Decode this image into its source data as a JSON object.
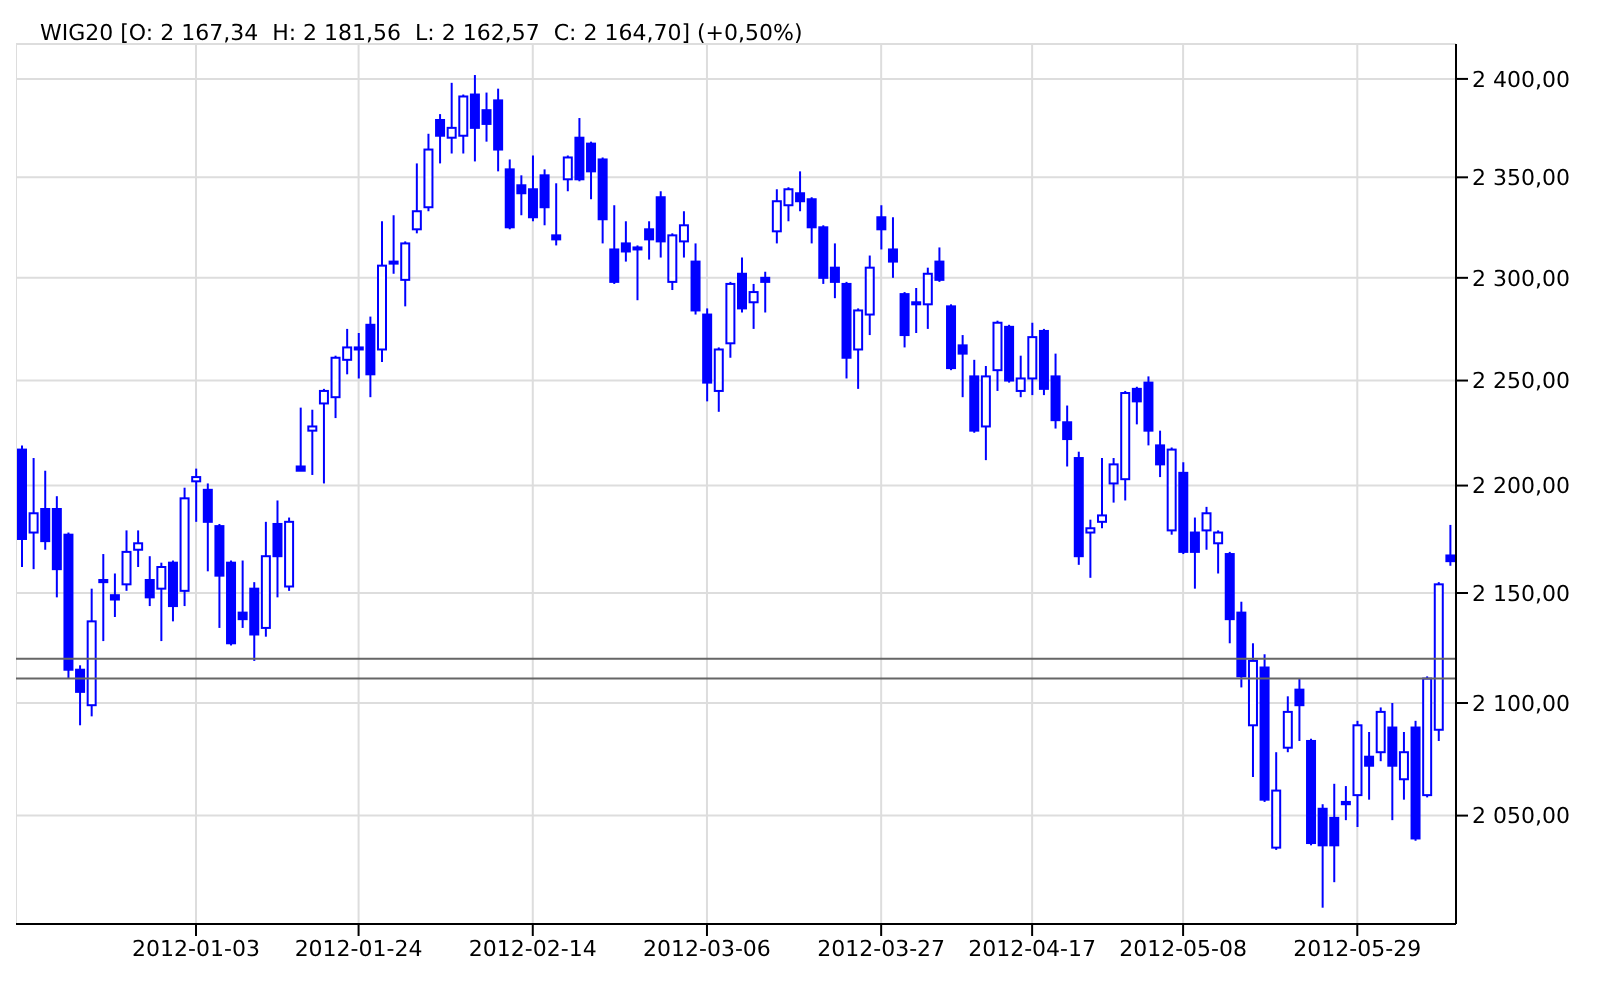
{
  "chart_data": {
    "type": "candlestick",
    "title": "WIG20 [O: 2 167,34  H: 2 181,56  L: 2 162,57  C: 2 164,70] (+0,50%)",
    "categories": [
      null,
      null,
      null,
      null,
      null,
      null,
      null,
      null,
      null,
      null,
      null,
      null,
      null,
      null,
      null,
      "2012-01-03",
      null,
      null,
      null,
      null,
      null,
      null,
      null,
      null,
      null,
      null,
      null,
      null,
      null,
      "2012-01-24",
      null,
      null,
      null,
      null,
      null,
      null,
      null,
      null,
      null,
      null,
      null,
      null,
      null,
      null,
      "2012-02-14",
      null,
      null,
      null,
      null,
      null,
      null,
      null,
      null,
      null,
      null,
      null,
      null,
      null,
      null,
      "2012-03-06",
      null,
      null,
      null,
      null,
      null,
      null,
      null,
      null,
      null,
      null,
      null,
      null,
      null,
      null,
      "2012-03-27",
      null,
      null,
      null,
      null,
      null,
      null,
      null,
      null,
      null,
      null,
      null,
      null,
      "2012-04-17",
      null,
      null,
      null,
      null,
      null,
      null,
      null,
      null,
      null,
      null,
      null,
      null,
      "2012-05-08",
      null,
      null,
      null,
      null,
      null,
      null,
      null,
      null,
      null,
      null,
      null,
      null,
      null,
      null,
      "2012-05-29",
      null,
      null,
      null,
      null,
      null,
      null,
      null,
      null
    ],
    "ohlc": [
      [
        2217,
        2219,
        2162,
        2175
      ],
      [
        2178,
        2213,
        2161,
        2187
      ],
      [
        2189,
        2207,
        2170,
        2174
      ],
      [
        2189,
        2195,
        2148,
        2161
      ],
      [
        2177,
        2178,
        2111,
        2115
      ],
      [
        2115,
        2117,
        2090,
        2105
      ],
      [
        2099,
        2152,
        2094,
        2137
      ],
      [
        2156,
        2168,
        2128,
        2155
      ],
      [
        2149,
        2159,
        2139,
        2147
      ],
      [
        2154,
        2179,
        2151,
        2169
      ],
      [
        2170,
        2179,
        2162,
        2173
      ],
      [
        2156,
        2167,
        2144,
        2148
      ],
      [
        2152,
        2164,
        2128,
        2162
      ],
      [
        2164,
        2165,
        2137,
        2144
      ],
      [
        2151,
        2199,
        2144,
        2194
      ],
      [
        2202,
        2208,
        2183,
        2204
      ],
      [
        2198,
        2201,
        2160,
        2183
      ],
      [
        2181,
        2182,
        2134,
        2158
      ],
      [
        2164,
        2165,
        2126,
        2127
      ],
      [
        2141,
        2165,
        2134,
        2138
      ],
      [
        2152,
        2155,
        2119,
        2131
      ],
      [
        2134,
        2183,
        2130,
        2167
      ],
      [
        2182,
        2193,
        2148,
        2167
      ],
      [
        2153,
        2185,
        2151,
        2183
      ],
      [
        2209,
        2237,
        2207,
        2207
      ],
      [
        2226,
        2236,
        2205,
        2228
      ],
      [
        2239,
        2246,
        2201,
        2245
      ],
      [
        2242,
        2262,
        2232,
        2261
      ],
      [
        2260,
        2275,
        2253,
        2266
      ],
      [
        2266,
        2273,
        2251,
        2265
      ],
      [
        2277,
        2281,
        2242,
        2253
      ],
      [
        2265,
        2328,
        2259,
        2306
      ],
      [
        2308,
        2331,
        2302,
        2307
      ],
      [
        2299,
        2318,
        2286,
        2317
      ],
      [
        2324,
        2357,
        2322,
        2333
      ],
      [
        2335,
        2372,
        2333,
        2364
      ],
      [
        2379,
        2382,
        2357,
        2371
      ],
      [
        2370,
        2398,
        2362,
        2375
      ],
      [
        2371,
        2392,
        2362,
        2391
      ],
      [
        2392,
        2402,
        2358,
        2375
      ],
      [
        2384,
        2393,
        2368,
        2377
      ],
      [
        2389,
        2395,
        2353,
        2364
      ],
      [
        2354,
        2359,
        2324,
        2325
      ],
      [
        2346,
        2351,
        2331,
        2342
      ],
      [
        2344,
        2361,
        2328,
        2330
      ],
      [
        2351,
        2354,
        2326,
        2335
      ],
      [
        2321,
        2347,
        2316,
        2319
      ],
      [
        2349,
        2361,
        2343,
        2360
      ],
      [
        2370,
        2380,
        2348,
        2349
      ],
      [
        2367,
        2368,
        2339,
        2353
      ],
      [
        2359,
        2360,
        2317,
        2329
      ],
      [
        2314,
        2336,
        2297,
        2298
      ],
      [
        2317,
        2328,
        2308,
        2313
      ],
      [
        2315,
        2316,
        2289,
        2314
      ],
      [
        2324,
        2328,
        2309,
        2319
      ],
      [
        2340,
        2343,
        2310,
        2318
      ],
      [
        2298,
        2322,
        2294,
        2321
      ],
      [
        2318,
        2333,
        2310,
        2326
      ],
      [
        2308,
        2317,
        2282,
        2284
      ],
      [
        2282,
        2285,
        2240,
        2249
      ],
      [
        2245,
        2266,
        2235,
        2265
      ],
      [
        2268,
        2298,
        2261,
        2297
      ],
      [
        2302,
        2310,
        2283,
        2285
      ],
      [
        2288,
        2297,
        2275,
        2293
      ],
      [
        2300,
        2303,
        2283,
        2298
      ],
      [
        2323,
        2344,
        2317,
        2338
      ],
      [
        2336,
        2345,
        2328,
        2344
      ],
      [
        2342,
        2353,
        2333,
        2338
      ],
      [
        2339,
        2340,
        2317,
        2325
      ],
      [
        2325,
        2326,
        2297,
        2300
      ],
      [
        2305,
        2317,
        2290,
        2298
      ],
      [
        2297,
        2298,
        2251,
        2261
      ],
      [
        2265,
        2285,
        2246,
        2284
      ],
      [
        2282,
        2311,
        2272,
        2305
      ],
      [
        2330,
        2336,
        2314,
        2324
      ],
      [
        2314,
        2330,
        2300,
        2308
      ],
      [
        2292,
        2293,
        2266,
        2272
      ],
      [
        2288,
        2295,
        2273,
        2287
      ],
      [
        2287,
        2305,
        2275,
        2302
      ],
      [
        2308,
        2315,
        2298,
        2299
      ],
      [
        2286,
        2287,
        2255,
        2256
      ],
      [
        2267,
        2272,
        2242,
        2263
      ],
      [
        2252,
        2260,
        2225,
        2226
      ],
      [
        2228,
        2257,
        2212,
        2252
      ],
      [
        2255,
        2279,
        2245,
        2278
      ],
      [
        2276,
        2277,
        2249,
        2250
      ],
      [
        2245,
        2262,
        2242,
        2251
      ],
      [
        2251,
        2278,
        2243,
        2271
      ],
      [
        2274,
        2275,
        2243,
        2246
      ],
      [
        2252,
        2263,
        2227,
        2231
      ],
      [
        2230,
        2238,
        2209,
        2222
      ],
      [
        2213,
        2216,
        2163,
        2167
      ],
      [
        2178,
        2184,
        2157,
        2180
      ],
      [
        2183,
        2213,
        2180,
        2186
      ],
      [
        2201,
        2213,
        2192,
        2210
      ],
      [
        2203,
        2245,
        2193,
        2244
      ],
      [
        2246,
        2247,
        2229,
        2240
      ],
      [
        2249,
        2252,
        2219,
        2226
      ],
      [
        2219,
        2226,
        2204,
        2210
      ],
      [
        2179,
        2218,
        2177,
        2217
      ],
      [
        2206,
        2211,
        2168,
        2169
      ],
      [
        2178,
        2185,
        2152,
        2169
      ],
      [
        2179,
        2190,
        2170,
        2187
      ],
      [
        2173,
        2179,
        2159,
        2178
      ],
      [
        2168,
        2169,
        2127,
        2138
      ],
      [
        2141,
        2146,
        2107,
        2112
      ],
      [
        2090,
        2127,
        2067,
        2119
      ],
      [
        2116,
        2122,
        2056,
        2057
      ],
      [
        2036,
        2078,
        2035,
        2061
      ],
      [
        2080,
        2103,
        2078,
        2096
      ],
      [
        2106,
        2111,
        2083,
        2099
      ],
      [
        2083,
        2084,
        2037,
        2038
      ],
      [
        2053,
        2055,
        2010,
        2037
      ],
      [
        2049,
        2064,
        2021,
        2037
      ],
      [
        2056,
        2063,
        2048,
        2055
      ],
      [
        2059,
        2092,
        2045,
        2090
      ],
      [
        2076,
        2087,
        2057,
        2072
      ],
      [
        2078,
        2098,
        2074,
        2096
      ],
      [
        2089,
        2100,
        2048,
        2072
      ],
      [
        2066,
        2087,
        2057,
        2078
      ],
      [
        2089,
        2092,
        2039,
        2040
      ],
      [
        2059,
        2112,
        2058,
        2111
      ],
      [
        2088,
        2155,
        2083,
        2154
      ],
      [
        2167.34,
        2181.56,
        2162.57,
        2164.7
      ]
    ],
    "color": "#0000ff",
    "log": "y",
    "ylim": [
      2003,
      2418
    ],
    "yticks": [
      {
        "value": 2050,
        "label": "2 050,00"
      },
      {
        "value": 2100,
        "label": "2 100,00"
      },
      {
        "value": 2150,
        "label": "2 150,00"
      },
      {
        "value": 2200,
        "label": "2 200,00"
      },
      {
        "value": 2250,
        "label": "2 250,00"
      },
      {
        "value": 2300,
        "label": "2 300,00"
      },
      {
        "value": 2350,
        "label": "2 350,00"
      },
      {
        "value": 2400,
        "label": "2 400,00"
      }
    ],
    "grid": true,
    "ref_lines": [
      {
        "axis": "y",
        "value": 2120,
        "color": "#666666"
      },
      {
        "axis": "y",
        "value": 2111,
        "color": "#666666"
      }
    ]
  }
}
